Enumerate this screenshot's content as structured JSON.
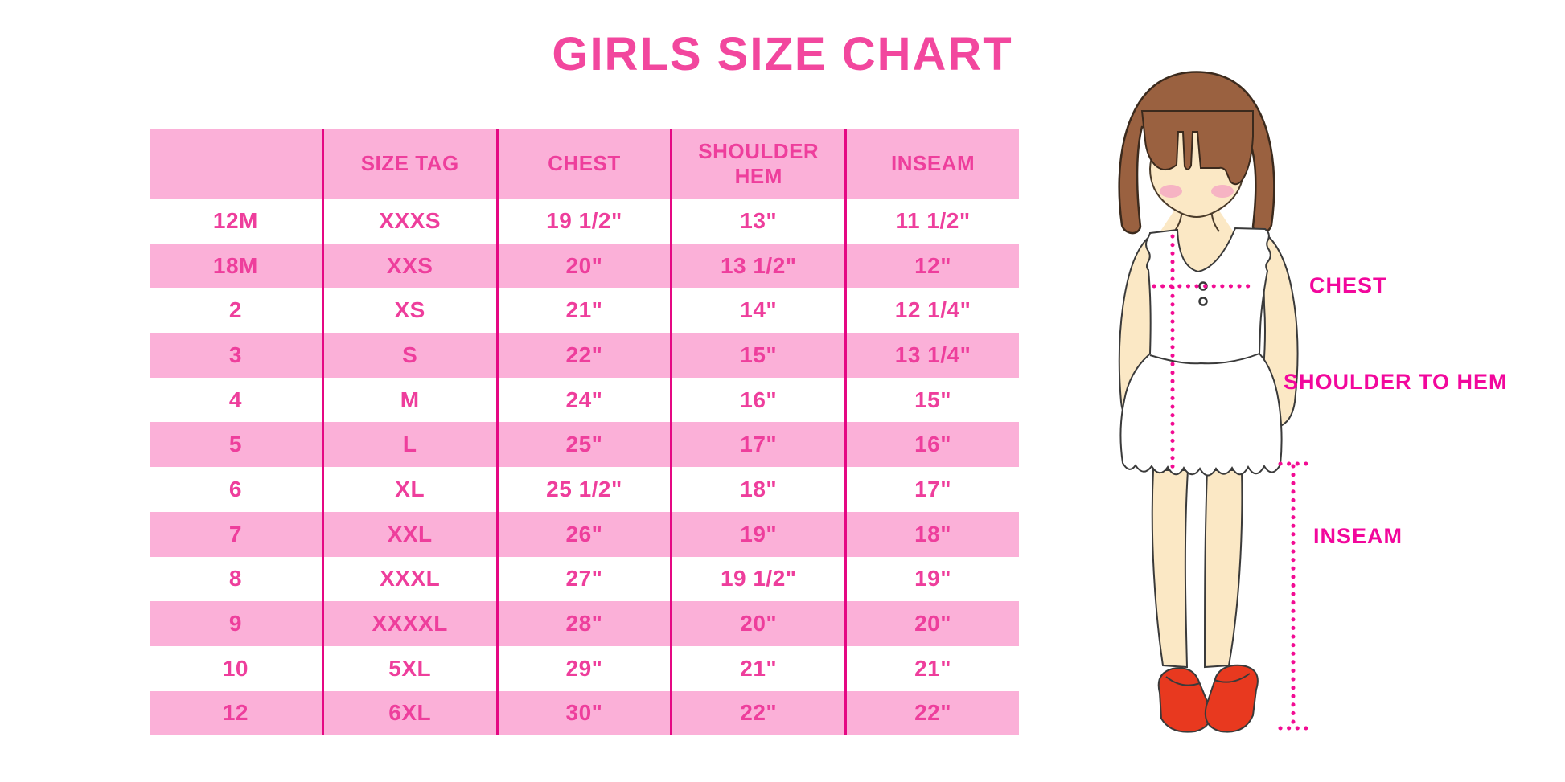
{
  "title": "GIRLS SIZE CHART",
  "chart_data": {
    "type": "table",
    "title": "GIRLS SIZE CHART",
    "columns": [
      "",
      "SIZE TAG",
      "CHEST",
      "SHOULDER HEM",
      "INSEAM"
    ],
    "rows": [
      [
        "12M",
        "XXXS",
        "19 1/2\"",
        "13\"",
        "11 1/2\""
      ],
      [
        "18M",
        "XXS",
        "20\"",
        "13 1/2\"",
        "12\""
      ],
      [
        "2",
        "XS",
        "21\"",
        "14\"",
        "12 1/4\""
      ],
      [
        "3",
        "S",
        "22\"",
        "15\"",
        "13 1/4\""
      ],
      [
        "4",
        "M",
        "24\"",
        "16\"",
        "15\""
      ],
      [
        "5",
        "L",
        "25\"",
        "17\"",
        "16\""
      ],
      [
        "6",
        "XL",
        "25 1/2\"",
        "18\"",
        "17\""
      ],
      [
        "7",
        "XXL",
        "26\"",
        "19\"",
        "18\""
      ],
      [
        "8",
        "XXXL",
        "27\"",
        "19 1/2\"",
        "19\""
      ],
      [
        "9",
        "XXXXL",
        "28\"",
        "20\"",
        "20\""
      ],
      [
        "10",
        "5XL",
        "29\"",
        "21\"",
        "21\""
      ],
      [
        "12",
        "6XL",
        "30\"",
        "22\"",
        "22\""
      ]
    ],
    "row_stripe_pattern": "white/pink alternating, header pink",
    "legend_position": "none",
    "grid": "vertical magenta dividers only"
  },
  "figure": {
    "chest_label": "CHEST",
    "shoulder_to_hem_label": "SHOULDER TO HEM",
    "inseam_label": "INSEAM"
  },
  "colors": {
    "title_pink": "#F2479E",
    "table_text_pink": "#EE3E9C",
    "row_stripe_pink": "#FBB0D8",
    "column_divider_magenta": "#E50883",
    "measure_line_magenta": "#F20C93",
    "label_magenta": "#F2079C",
    "hair_brown": "#9A6140",
    "hair_outline": "#3B2A1D",
    "skin": "#FBE8C5",
    "blush_pink": "#F5A9C2",
    "shoe_red": "#E8391F"
  }
}
